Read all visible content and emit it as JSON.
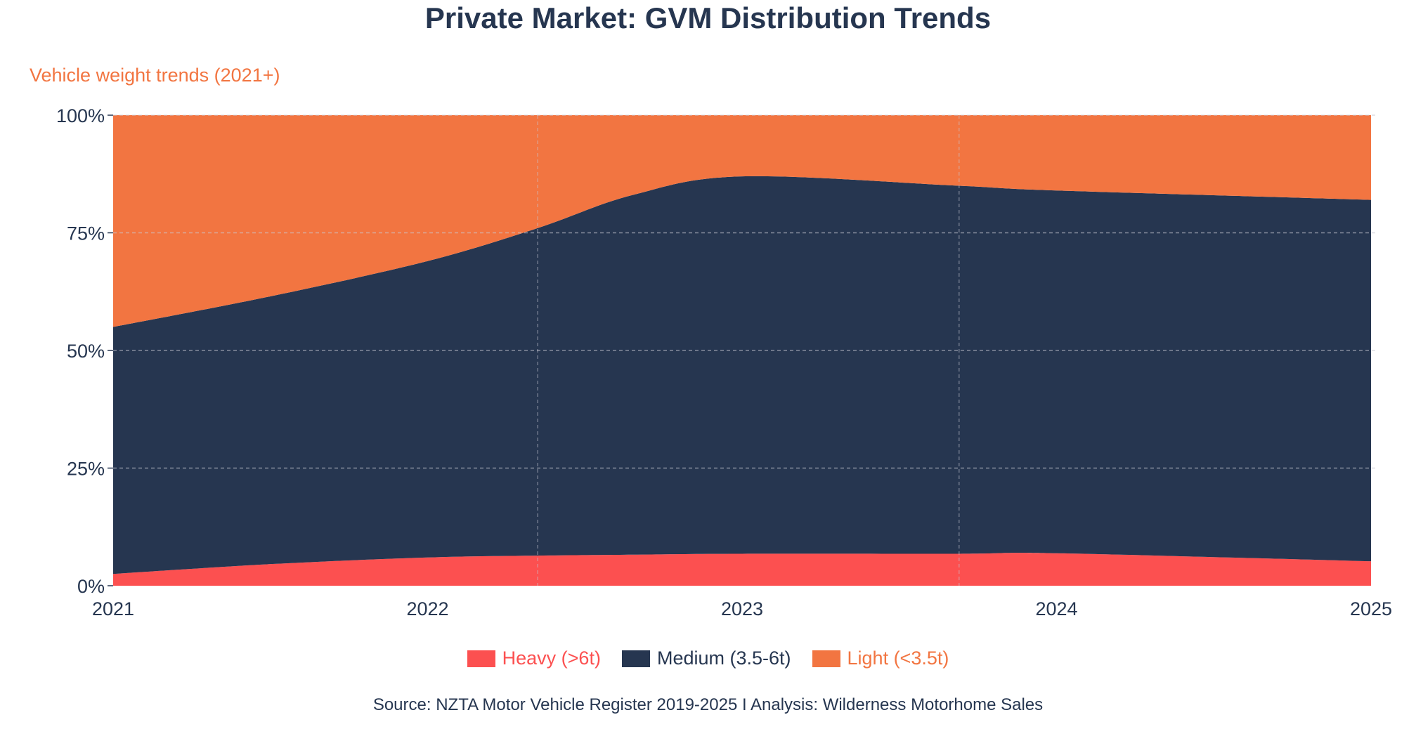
{
  "title": "Private Market: GVM Distribution Trends",
  "subtitle": "Vehicle weight trends (2021+)",
  "source": "Source: NZTA Motor Vehicle Register 2019-2025 I Analysis: Wilderness Motorhome Sales",
  "chart_data": {
    "type": "area",
    "stacked": true,
    "x": [
      2021,
      2021.5,
      2022,
      2022.35,
      2022.65,
      2023,
      2023.69,
      2024,
      2025
    ],
    "xlim": [
      2021,
      2025
    ],
    "ylim": [
      0,
      100
    ],
    "x_ticks": [
      "2021",
      "2022",
      "2023",
      "2024",
      "2025"
    ],
    "x_tick_values": [
      2021,
      2022,
      2023,
      2024,
      2025
    ],
    "y_ticks": [
      "0%",
      "25%",
      "50%",
      "75%",
      "100%"
    ],
    "y_tick_values": [
      0,
      25,
      50,
      75,
      100
    ],
    "vertical_gridlines": [
      2022.35,
      2023.69
    ],
    "grid": true,
    "legend_position": "bottom",
    "series": [
      {
        "name": "Heavy (>6t)",
        "color": "#FC5050",
        "values": [
          2.5,
          4.6,
          6.0,
          6.4,
          6.6,
          6.8,
          6.8,
          6.9,
          5.2
        ]
      },
      {
        "name": "Medium (3.5-6t)",
        "color": "#263650",
        "values": [
          52.5,
          56.9,
          63.0,
          69.6,
          76.4,
          80.2,
          78.2,
          77.1,
          76.8
        ]
      },
      {
        "name": "Light (<3.5t)",
        "color": "#F27541",
        "values": [
          45.0,
          38.5,
          31.0,
          24.0,
          17.0,
          13.0,
          15.0,
          16.0,
          18.0
        ]
      }
    ]
  }
}
